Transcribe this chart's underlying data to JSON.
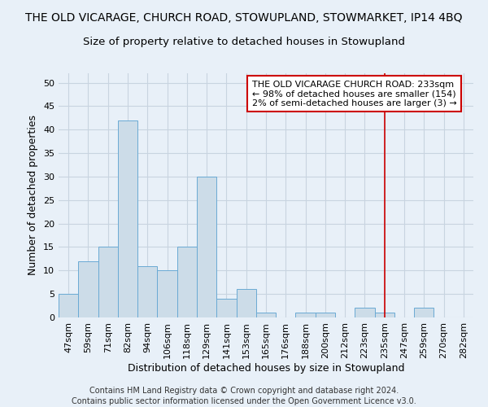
{
  "title": "THE OLD VICARAGE, CHURCH ROAD, STOWUPLAND, STOWMARKET, IP14 4BQ",
  "subtitle": "Size of property relative to detached houses in Stowupland",
  "xlabel": "Distribution of detached houses by size in Stowupland",
  "ylabel": "Number of detached properties",
  "categories": [
    "47sqm",
    "59sqm",
    "71sqm",
    "82sqm",
    "94sqm",
    "106sqm",
    "118sqm",
    "129sqm",
    "141sqm",
    "153sqm",
    "165sqm",
    "176sqm",
    "188sqm",
    "200sqm",
    "212sqm",
    "223sqm",
    "235sqm",
    "247sqm",
    "259sqm",
    "270sqm",
    "282sqm"
  ],
  "values": [
    5,
    12,
    15,
    42,
    11,
    10,
    15,
    30,
    4,
    6,
    1,
    0,
    1,
    1,
    0,
    2,
    1,
    0,
    2,
    0,
    0
  ],
  "bar_color": "#ccdce8",
  "bar_edge_color": "#6aaad4",
  "grid_color": "#c8d4e0",
  "background_color": "#e8f0f8",
  "vline_x_index": 16,
  "vline_color": "#cc0000",
  "annotation_line1": "THE OLD VICARAGE CHURCH ROAD: 233sqm",
  "annotation_line2": "← 98% of detached houses are smaller (154)",
  "annotation_line3": "2% of semi-detached houses are larger (3) →",
  "annotation_box_color": "#ffffff",
  "annotation_box_edge": "#cc0000",
  "ylim": [
    0,
    52
  ],
  "yticks": [
    0,
    5,
    10,
    15,
    20,
    25,
    30,
    35,
    40,
    45,
    50
  ],
  "footer_line1": "Contains HM Land Registry data © Crown copyright and database right 2024.",
  "footer_line2": "Contains public sector information licensed under the Open Government Licence v3.0.",
  "title_fontsize": 10,
  "subtitle_fontsize": 9.5,
  "axis_label_fontsize": 9,
  "tick_fontsize": 8,
  "annotation_fontsize": 8,
  "footer_fontsize": 7
}
